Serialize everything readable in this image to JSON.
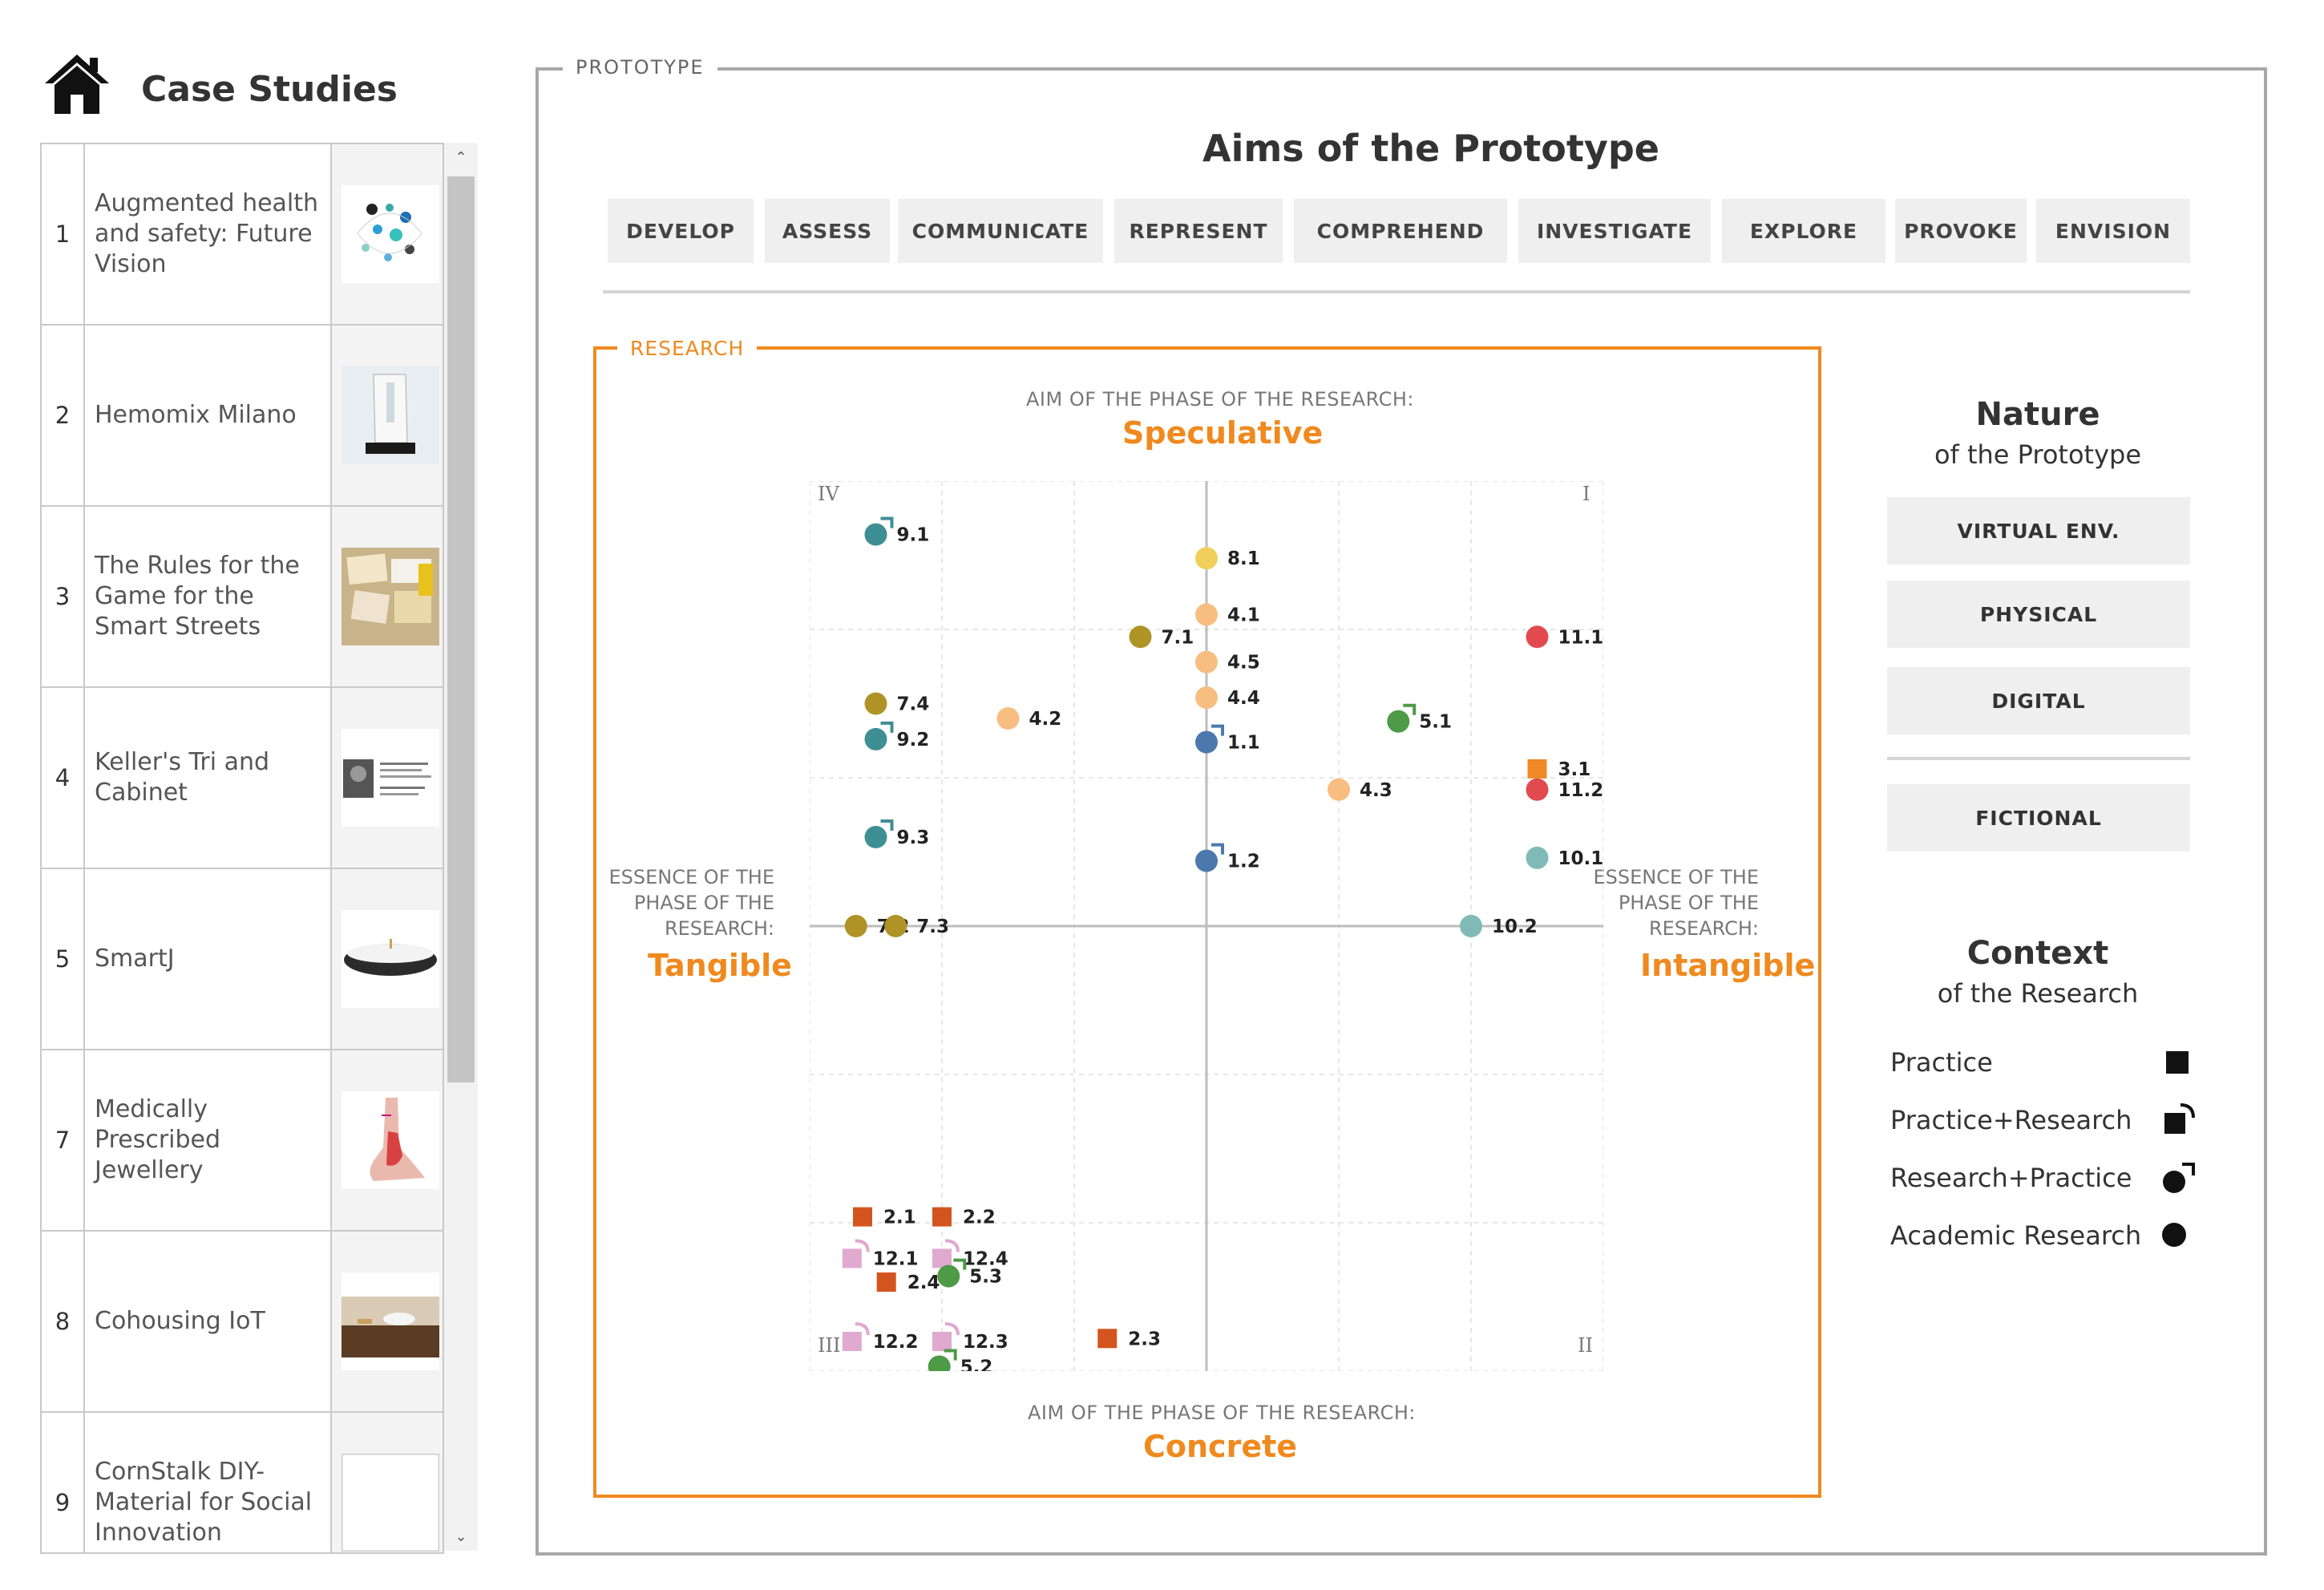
{
  "sidebar": {
    "title": "Case Studies",
    "items": [
      {
        "num": "1",
        "name": "Augmented health and safety: Future Vision"
      },
      {
        "num": "2",
        "name": "Hemomix Milano"
      },
      {
        "num": "3",
        "name": "The Rules for the Game for the Smart Streets"
      },
      {
        "num": "4",
        "name": "Keller's Tri and Cabinet"
      },
      {
        "num": "5",
        "name": "SmartJ"
      },
      {
        "num": "7",
        "name": "Medically Prescribed Jewellery"
      },
      {
        "num": "8",
        "name": "Cohousing IoT"
      },
      {
        "num": "9",
        "name": "CornStalk DIY-Material for Social Innovation"
      }
    ]
  },
  "frame": {
    "label": "PROTOTYPE",
    "title": "Aims of the Prototype"
  },
  "aims": [
    "DEVELOP",
    "ASSESS",
    "COMMUNICATE",
    "REPRESENT",
    "COMPREHEND",
    "INVESTIGATE",
    "EXPLORE",
    "PROVOKE",
    "ENVISION"
  ],
  "research": {
    "label": "RESEARCH",
    "top_caption": "AIM OF THE PHASE OF THE  RESEARCH:",
    "top_value": "Speculative",
    "bottom_caption": "AIM OF THE PHASE OF THE RESEARCH:",
    "bottom_value": "Concrete",
    "left_caption": "ESSENCE OF THE PHASE OF THE RESEARCH:",
    "left_value": "Tangible",
    "right_caption": "ESSENCE OF THE PHASE OF THE RESEARCH:",
    "right_value": "Intangible"
  },
  "chart_data": {
    "type": "scatter",
    "xlim": [
      -3,
      3
    ],
    "ylim": [
      -3,
      3
    ],
    "grid": true,
    "quadrants": {
      "I": "I",
      "II": "II",
      "III": "III",
      "IV": "IV"
    },
    "points": [
      {
        "label": "9.1",
        "x": -2.5,
        "y": 2.64,
        "color": "#3e8f93",
        "shape": "research-practice"
      },
      {
        "label": "8.1",
        "x": 0.0,
        "y": 2.48,
        "color": "#f2cf5b",
        "shape": "circle"
      },
      {
        "label": "4.1",
        "x": 0.0,
        "y": 2.1,
        "color": "#f8bd80",
        "shape": "circle"
      },
      {
        "label": "7.1",
        "x": -0.5,
        "y": 1.95,
        "color": "#b09327",
        "shape": "circle"
      },
      {
        "label": "11.1",
        "x": 2.5,
        "y": 1.95,
        "color": "#e14b4f",
        "shape": "circle"
      },
      {
        "label": "4.5",
        "x": 0.0,
        "y": 1.78,
        "color": "#f8bd80",
        "shape": "circle"
      },
      {
        "label": "4.4",
        "x": 0.0,
        "y": 1.54,
        "color": "#f8bd80",
        "shape": "circle"
      },
      {
        "label": "7.4",
        "x": -2.5,
        "y": 1.5,
        "color": "#b09327",
        "shape": "circle"
      },
      {
        "label": "4.2",
        "x": -1.5,
        "y": 1.4,
        "color": "#f8bd80",
        "shape": "circle"
      },
      {
        "label": "5.1",
        "x": 1.45,
        "y": 1.38,
        "color": "#4e9a47",
        "shape": "research-practice"
      },
      {
        "label": "9.2",
        "x": -2.5,
        "y": 1.26,
        "color": "#3e8f93",
        "shape": "research-practice"
      },
      {
        "label": "1.1",
        "x": 0.0,
        "y": 1.24,
        "color": "#4c79ad",
        "shape": "research-practice"
      },
      {
        "label": "3.1",
        "x": 2.5,
        "y": 1.06,
        "color": "#ef8a27",
        "shape": "square"
      },
      {
        "label": "11.2",
        "x": 2.5,
        "y": 0.92,
        "color": "#e14b4f",
        "shape": "circle"
      },
      {
        "label": "4.3",
        "x": 1.0,
        "y": 0.92,
        "color": "#f8bd80",
        "shape": "circle"
      },
      {
        "label": "9.3",
        "x": -2.5,
        "y": 0.6,
        "color": "#3e8f93",
        "shape": "research-practice"
      },
      {
        "label": "1.2",
        "x": 0.0,
        "y": 0.44,
        "color": "#4c79ad",
        "shape": "research-practice"
      },
      {
        "label": "10.1",
        "x": 2.5,
        "y": 0.46,
        "color": "#7fbab6",
        "shape": "circle"
      },
      {
        "label": "7.2",
        "x": -2.65,
        "y": 0.0,
        "color": "#b09327",
        "shape": "circle"
      },
      {
        "label": "7.3",
        "x": -2.35,
        "y": 0.0,
        "color": "#b09327",
        "shape": "circle"
      },
      {
        "label": "10.2",
        "x": 2.0,
        "y": 0.0,
        "color": "#7fbab6",
        "shape": "circle"
      },
      {
        "label": "2.1",
        "x": -2.6,
        "y": -1.96,
        "color": "#d4541f",
        "shape": "square"
      },
      {
        "label": "2.2",
        "x": -2.0,
        "y": -1.96,
        "color": "#d4541f",
        "shape": "square"
      },
      {
        "label": "12.1",
        "x": -2.68,
        "y": -2.24,
        "color": "#e0a9cf",
        "shape": "practice-research"
      },
      {
        "label": "12.4",
        "x": -2.0,
        "y": -2.24,
        "color": "#e0a9cf",
        "shape": "practice-research"
      },
      {
        "label": "5.3",
        "x": -1.95,
        "y": -2.36,
        "color": "#4e9a47",
        "shape": "research-practice"
      },
      {
        "label": "2.4",
        "x": -2.42,
        "y": -2.4,
        "color": "#d4541f",
        "shape": "square"
      },
      {
        "label": "12.2",
        "x": -2.68,
        "y": -2.8,
        "color": "#e0a9cf",
        "shape": "practice-research"
      },
      {
        "label": "12.3",
        "x": -2.0,
        "y": -2.8,
        "color": "#e0a9cf",
        "shape": "practice-research"
      },
      {
        "label": "2.3",
        "x": -0.75,
        "y": -2.78,
        "color": "#d4541f",
        "shape": "square"
      },
      {
        "label": "5.2",
        "x": -2.02,
        "y": -2.97,
        "color": "#4e9a47",
        "shape": "research-practice"
      }
    ]
  },
  "nature": {
    "title": "Nature",
    "subtitle": "of the Prototype",
    "buttons": [
      "VIRTUAL ENV.",
      "PHYSICAL",
      "DIGITAL",
      "FICTIONAL"
    ]
  },
  "context": {
    "title": "Context",
    "subtitle": "of the Research",
    "items": [
      "Practice",
      "Practice+Research",
      "Research+Practice",
      "Academic Research"
    ]
  }
}
